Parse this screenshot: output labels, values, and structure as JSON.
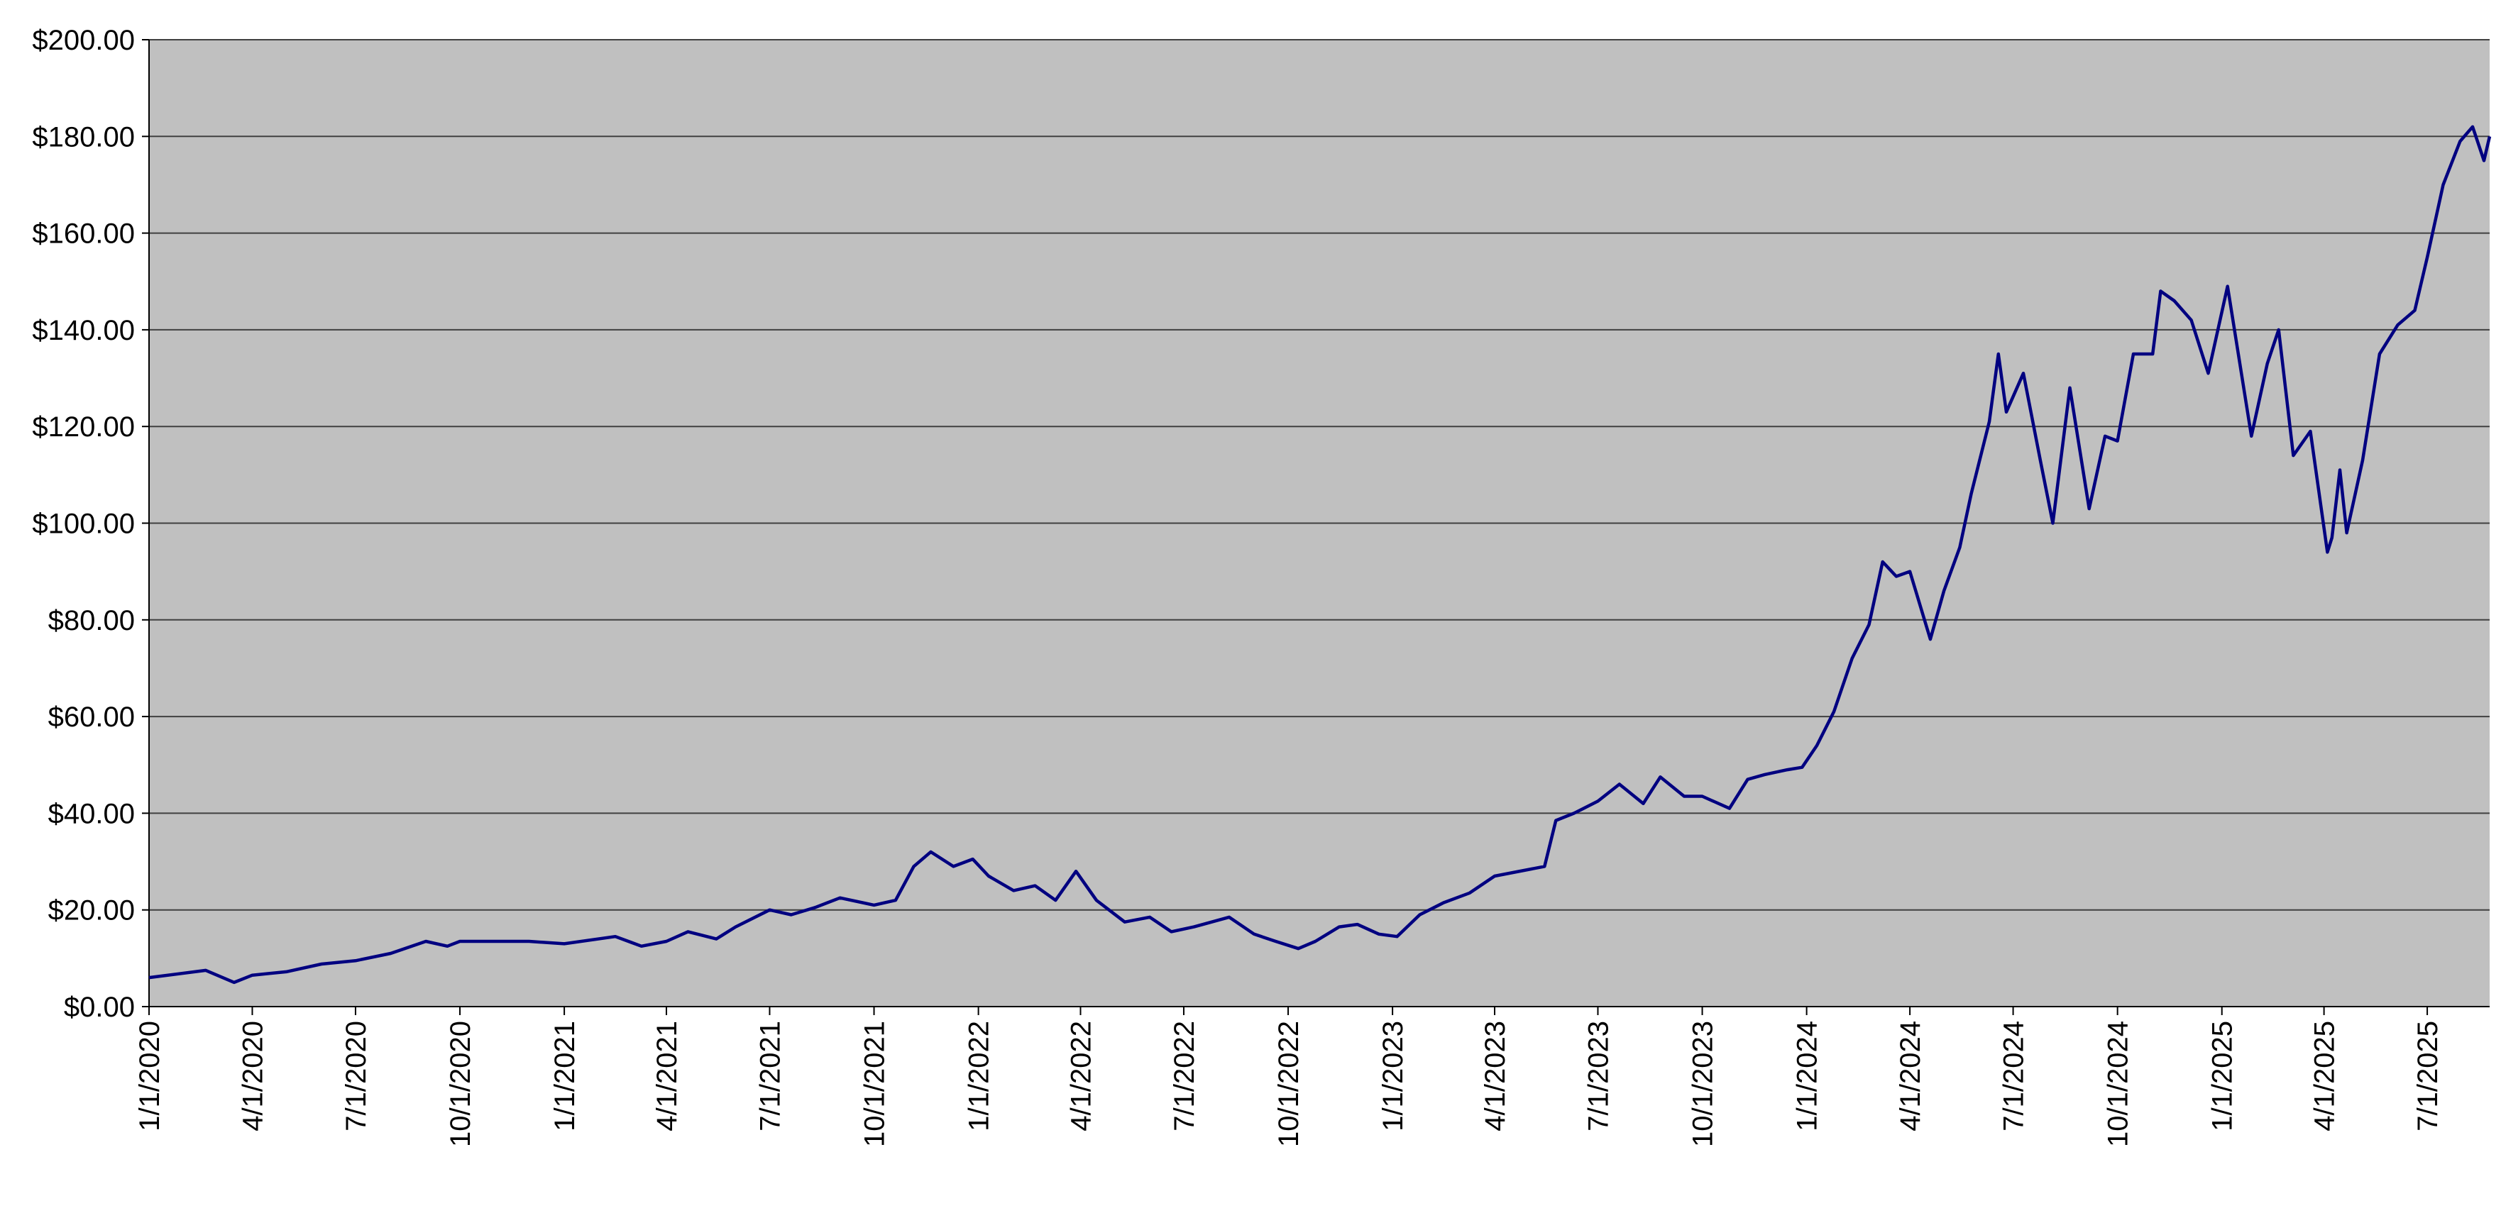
{
  "chart_data": {
    "type": "line",
    "x": [
      "2020-01-01",
      "2020-02-20",
      "2020-03-16",
      "2020-04-01",
      "2020-05-01",
      "2020-06-01",
      "2020-07-01",
      "2020-08-01",
      "2020-09-01",
      "2020-09-20",
      "2020-10-01",
      "2020-11-01",
      "2020-12-01",
      "2021-01-01",
      "2021-02-15",
      "2021-03-10",
      "2021-04-01",
      "2021-04-20",
      "2021-05-15",
      "2021-06-01",
      "2021-07-01",
      "2021-07-20",
      "2021-08-10",
      "2021-09-01",
      "2021-10-01",
      "2021-10-20",
      "2021-11-05",
      "2021-11-20",
      "2021-12-10",
      "2021-12-27",
      "2022-01-10",
      "2022-02-01",
      "2022-02-20",
      "2022-03-10",
      "2022-03-28",
      "2022-04-15",
      "2022-05-10",
      "2022-06-01",
      "2022-06-20",
      "2022-07-10",
      "2022-08-10",
      "2022-09-01",
      "2022-09-20",
      "2022-10-10",
      "2022-10-25",
      "2022-11-15",
      "2022-12-01",
      "2022-12-20",
      "2023-01-05",
      "2023-01-25",
      "2023-02-15",
      "2023-03-10",
      "2023-04-01",
      "2023-05-15",
      "2023-05-25",
      "2023-06-10",
      "2023-07-01",
      "2023-07-20",
      "2023-08-10",
      "2023-08-25",
      "2023-09-15",
      "2023-10-01",
      "2023-10-25",
      "2023-11-10",
      "2023-11-25",
      "2023-12-15",
      "2023-12-28",
      "2024-01-10",
      "2024-01-25",
      "2024-02-10",
      "2024-02-25",
      "2024-03-08",
      "2024-03-20",
      "2024-04-01",
      "2024-04-19",
      "2024-05-01",
      "2024-05-15",
      "2024-05-25",
      "2024-06-10",
      "2024-06-18",
      "2024-06-25",
      "2024-07-10",
      "2024-07-25",
      "2024-08-05",
      "2024-08-20",
      "2024-09-06",
      "2024-09-20",
      "2024-10-01",
      "2024-10-15",
      "2024-11-01",
      "2024-11-08",
      "2024-11-20",
      "2024-12-05",
      "2024-12-20",
      "2025-01-06",
      "2025-01-27",
      "2025-02-10",
      "2025-02-20",
      "2025-03-05",
      "2025-03-20",
      "2025-04-04",
      "2025-04-08",
      "2025-04-15",
      "2025-04-21",
      "2025-05-05",
      "2025-05-20",
      "2025-06-05",
      "2025-06-20",
      "2025-07-01",
      "2025-07-15",
      "2025-07-30",
      "2025-08-10",
      "2025-08-20",
      "2025-08-25"
    ],
    "series": [
      {
        "color": "#000080",
        "values": [
          6,
          7.5,
          5,
          6.5,
          7.2,
          8.8,
          9.5,
          11,
          13.5,
          12.5,
          13.5,
          13.5,
          13.5,
          13,
          14.5,
          12.5,
          13.5,
          15.5,
          14,
          16.5,
          20,
          19,
          20.5,
          22.5,
          21,
          22,
          29,
          32,
          29,
          30.5,
          27,
          24,
          25,
          22,
          28,
          22,
          17.5,
          18.5,
          15.5,
          16.5,
          18.5,
          15,
          13.5,
          12,
          13.5,
          16.5,
          17,
          15,
          14.5,
          19,
          21.5,
          23.5,
          27,
          29,
          38.5,
          40,
          42.5,
          46,
          42,
          47.5,
          43.5,
          43.5,
          41,
          47,
          48,
          49,
          49.5,
          54,
          61,
          72,
          79,
          92,
          89,
          90,
          76,
          86,
          95,
          106,
          121,
          135,
          123,
          131,
          113,
          100,
          128,
          103,
          118,
          117,
          135,
          135,
          148,
          146,
          142,
          131,
          149,
          118,
          133,
          140,
          114,
          119,
          94,
          97,
          111,
          98,
          113,
          135,
          141,
          144,
          155,
          170,
          179,
          182,
          175,
          180
        ]
      }
    ],
    "xlim": [
      "2020-01-01",
      "2025-08-25"
    ],
    "xticks": [
      {
        "value": "2020-01-01",
        "label": "1/1/2020"
      },
      {
        "value": "2020-04-01",
        "label": "4/1/2020"
      },
      {
        "value": "2020-07-01",
        "label": "7/1/2020"
      },
      {
        "value": "2020-10-01",
        "label": "10/1/2020"
      },
      {
        "value": "2021-01-01",
        "label": "1/1/2021"
      },
      {
        "value": "2021-04-01",
        "label": "4/1/2021"
      },
      {
        "value": "2021-07-01",
        "label": "7/1/2021"
      },
      {
        "value": "2021-10-01",
        "label": "10/1/2021"
      },
      {
        "value": "2022-01-01",
        "label": "1/1/2022"
      },
      {
        "value": "2022-04-01",
        "label": "4/1/2022"
      },
      {
        "value": "2022-07-01",
        "label": "7/1/2022"
      },
      {
        "value": "2022-10-01",
        "label": "10/1/2022"
      },
      {
        "value": "2023-01-01",
        "label": "1/1/2023"
      },
      {
        "value": "2023-04-01",
        "label": "4/1/2023"
      },
      {
        "value": "2023-07-01",
        "label": "7/1/2023"
      },
      {
        "value": "2023-10-01",
        "label": "10/1/2023"
      },
      {
        "value": "2024-01-01",
        "label": "1/1/2024"
      },
      {
        "value": "2024-04-01",
        "label": "4/1/2024"
      },
      {
        "value": "2024-07-01",
        "label": "7/1/2024"
      },
      {
        "value": "2024-10-01",
        "label": "10/1/2024"
      },
      {
        "value": "2025-01-01",
        "label": "1/1/2025"
      },
      {
        "value": "2025-04-01",
        "label": "4/1/2025"
      },
      {
        "value": "2025-07-01",
        "label": "7/1/2025"
      }
    ],
    "ylim": [
      0,
      200
    ],
    "yticks": [
      {
        "value": 0,
        "label": "$0.00"
      },
      {
        "value": 20,
        "label": "$20.00"
      },
      {
        "value": 40,
        "label": "$40.00"
      },
      {
        "value": 60,
        "label": "$60.00"
      },
      {
        "value": 80,
        "label": "$80.00"
      },
      {
        "value": 100,
        "label": "$100.00"
      },
      {
        "value": 120,
        "label": "$120.00"
      },
      {
        "value": 140,
        "label": "$140.00"
      },
      {
        "value": 160,
        "label": "$160.00"
      },
      {
        "value": 180,
        "label": "$180.00"
      },
      {
        "value": 200,
        "label": "$200.00"
      }
    ],
    "grid": true,
    "background": "#c0c0c0"
  }
}
